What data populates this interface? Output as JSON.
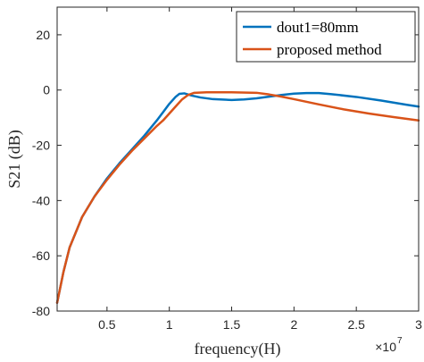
{
  "chart_data": {
    "type": "line",
    "xlabel": "frequency(H)",
    "ylabel": "S21 (dB)",
    "x_exponent_label": {
      "base": "×10",
      "power": "7"
    },
    "xlim": [
      0.1,
      3.0
    ],
    "ylim": [
      -80,
      30
    ],
    "xticks": [
      0.5,
      1,
      1.5,
      2,
      2.5,
      3
    ],
    "xtick_labels": [
      "0.5",
      "1",
      "1.5",
      "2",
      "2.5",
      "3"
    ],
    "yticks": [
      -80,
      -60,
      -40,
      -20,
      0,
      20
    ],
    "ytick_labels": [
      "-80",
      "-60",
      "-40",
      "-20",
      "0",
      "20"
    ],
    "grid": false,
    "legend_position": "top-right",
    "series": [
      {
        "name": "dout1=80mm",
        "color": "#0072BD",
        "x": [
          0.1,
          0.15,
          0.2,
          0.3,
          0.4,
          0.5,
          0.6,
          0.7,
          0.8,
          0.9,
          0.95,
          1.0,
          1.05,
          1.08,
          1.12,
          1.18,
          1.25,
          1.35,
          1.5,
          1.6,
          1.7,
          1.8,
          1.9,
          2.0,
          2.1,
          2.2,
          2.3,
          2.5,
          2.7,
          2.9,
          3.0
        ],
        "y": [
          -77,
          -66,
          -57,
          -46,
          -38.5,
          -32,
          -26.5,
          -21.5,
          -16.5,
          -11,
          -8,
          -5,
          -2.5,
          -1.4,
          -1.2,
          -2,
          -2.7,
          -3.3,
          -3.6,
          -3.4,
          -3,
          -2.4,
          -1.8,
          -1.3,
          -1.1,
          -1.1,
          -1.5,
          -2.5,
          -3.8,
          -5.3,
          -6
        ]
      },
      {
        "name": "proposed method",
        "color": "#D95319",
        "x": [
          0.1,
          0.15,
          0.2,
          0.3,
          0.4,
          0.5,
          0.6,
          0.7,
          0.8,
          0.9,
          0.95,
          1.0,
          1.05,
          1.1,
          1.15,
          1.2,
          1.3,
          1.5,
          1.7,
          1.8,
          1.9,
          2.0,
          2.2,
          2.4,
          2.6,
          2.8,
          3.0
        ],
        "y": [
          -77,
          -66,
          -57,
          -46,
          -38.5,
          -32.5,
          -27,
          -22,
          -17.5,
          -13,
          -11,
          -8.5,
          -6,
          -3.5,
          -1.8,
          -1,
          -0.8,
          -0.8,
          -1,
          -1.6,
          -2.4,
          -3.3,
          -5.2,
          -7,
          -8.5,
          -9.8,
          -11
        ]
      }
    ]
  }
}
